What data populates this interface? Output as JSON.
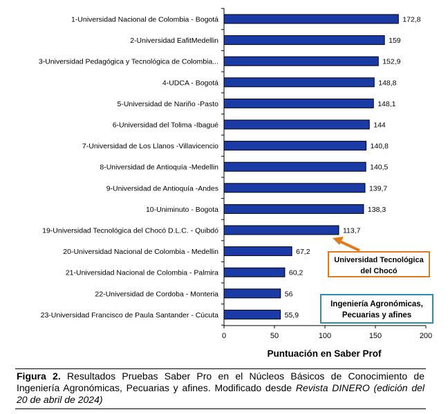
{
  "chart_data": {
    "type": "bar",
    "orientation": "horizontal",
    "categories": [
      "1-Universidad Nacional de Colombia - Bogotá",
      "2-Universidad EafitMedellin",
      "3-Universidad Pedagógica y Tecnológica de Colombia...",
      "4-UDCA - Bogotá",
      "5-Universidad de Nariño -Pasto",
      "6-Universidad del Tolima -Ibagué",
      "7-Universidad de Los Llanos -Villavicencio",
      "8-Universidad de Antioquía -Medellin",
      "9-Universidad de Antioquía -Andes",
      "10-Uniminuto - Bogota",
      "19-Universidad Tecnológica del Chocó D.L.C. - Quibdó",
      "20-Universidad Nacional de Colombia - Medellin",
      "21-Universidad Nacional de Colombia - Palmira",
      "22-Universidad de Cordoba - Monteria",
      "23-Universidad Francisco de Paula Santander - Cúcuta"
    ],
    "values": [
      172.8,
      159,
      152.9,
      148.8,
      148.1,
      144,
      140.8,
      140.5,
      139.7,
      138.3,
      113.7,
      67.2,
      60.2,
      56,
      55.9
    ],
    "value_labels": [
      "172,8",
      "159",
      "152,9",
      "148,8",
      "148,1",
      "144",
      "140,8",
      "140,5",
      "139,7",
      "138,3",
      "113,7",
      "67,2",
      "60,2",
      "56",
      "55,9"
    ],
    "xlabel": "Puntuación en Saber Prof",
    "xlim": [
      0,
      200
    ],
    "xticks": [
      0,
      50,
      100,
      150,
      200
    ],
    "bar_color": "#1a3aa6",
    "grid": false
  },
  "annotations": {
    "highlight": {
      "line1": "Universidad Tecnológica",
      "line2": "del Chocó",
      "border_color": "#e07a1f",
      "arrow_color": "#e07a1f"
    },
    "area": {
      "line1": "Ingeniería Agronómicas,",
      "line2": "Pecuarias y afines",
      "border_color": "#2a8fa8"
    }
  },
  "caption": {
    "figure_label": "Figura 2.",
    "text": " Resultados Pruebas Saber Pro en el Núcleos Básicos de Conocimiento de Ingeniería Agronómicas, Pecuarias y afines. Modificado desde ",
    "source_italic": "Revista DINERO (edición del 20 de abril de 2024)"
  }
}
